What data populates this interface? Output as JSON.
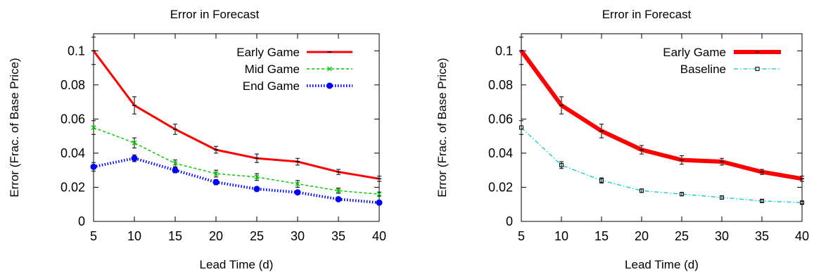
{
  "chart_data": [
    {
      "type": "line",
      "title": "Error in Forecast",
      "xlabel": "Lead Time (d)",
      "ylabel": "Error (Frac. of Base Price)",
      "x": [
        5,
        10,
        15,
        20,
        25,
        30,
        35,
        40
      ],
      "xlim": [
        5,
        40
      ],
      "ylim": [
        0,
        0.11
      ],
      "xticks": [
        "5",
        "10",
        "15",
        "20",
        "25",
        "30",
        "35",
        "40"
      ],
      "yticks": [
        "0",
        "0.02",
        "0.04",
        "0.06",
        "0.08",
        "0.1"
      ],
      "yticks_values": [
        0,
        0.02,
        0.04,
        0.06,
        0.08,
        0.1
      ],
      "grid": false,
      "legend": "top-right",
      "series": [
        {
          "name": "Early Game",
          "color": "#ff0000",
          "style": "solid",
          "marker": "dash",
          "values": [
            0.1,
            0.068,
            0.054,
            0.042,
            0.037,
            0.035,
            0.029,
            0.025
          ],
          "errors": [
            0.008,
            0.005,
            0.003,
            0.002,
            0.0025,
            0.002,
            0.0015,
            0.0015
          ]
        },
        {
          "name": "Mid Game",
          "color": "#00cc00",
          "style": "dashed",
          "marker": "x",
          "values": [
            0.055,
            0.046,
            0.034,
            0.028,
            0.026,
            0.022,
            0.018,
            0.016
          ],
          "errors": [
            0.004,
            0.003,
            0.002,
            0.002,
            0.002,
            0.002,
            0.0015,
            0.0012
          ]
        },
        {
          "name": "End Game",
          "color": "#0000ff",
          "style": "dotted",
          "marker": "circle",
          "values": [
            0.032,
            0.037,
            0.03,
            0.023,
            0.019,
            0.017,
            0.013,
            0.011
          ],
          "errors": [
            0.0025,
            0.002,
            0.0015,
            0.0015,
            0.001,
            0.001,
            0.001,
            0.001
          ]
        }
      ]
    },
    {
      "type": "line",
      "title": "Error in Forecast",
      "xlabel": "Lead Time (d)",
      "ylabel": "Error (Frac. of Base Price)",
      "x": [
        5,
        10,
        15,
        20,
        25,
        30,
        35,
        40
      ],
      "xlim": [
        5,
        40
      ],
      "ylim": [
        0,
        0.11
      ],
      "xticks": [
        "5",
        "10",
        "15",
        "20",
        "25",
        "30",
        "35",
        "40"
      ],
      "yticks": [
        "0",
        "0.02",
        "0.04",
        "0.06",
        "0.08",
        "0.1"
      ],
      "yticks_values": [
        0,
        0.02,
        0.04,
        0.06,
        0.08,
        0.1
      ],
      "grid": false,
      "legend": "top-right",
      "series": [
        {
          "name": "Early Game",
          "color": "#ff0000",
          "style": "solid-thick",
          "marker": "dash",
          "values": [
            0.1,
            0.068,
            0.053,
            0.042,
            0.036,
            0.035,
            0.029,
            0.025
          ],
          "errors": [
            0.008,
            0.005,
            0.004,
            0.0025,
            0.0025,
            0.002,
            0.0015,
            0.0015
          ]
        },
        {
          "name": "Baseline",
          "color": "#00cccc",
          "style": "dashdot",
          "marker": "square",
          "values": [
            0.055,
            0.033,
            0.024,
            0.018,
            0.016,
            0.014,
            0.012,
            0.011
          ],
          "errors": [
            0.004,
            0.002,
            0.0015,
            0.001,
            0.001,
            0.001,
            0.0008,
            0.0007
          ]
        }
      ]
    }
  ]
}
